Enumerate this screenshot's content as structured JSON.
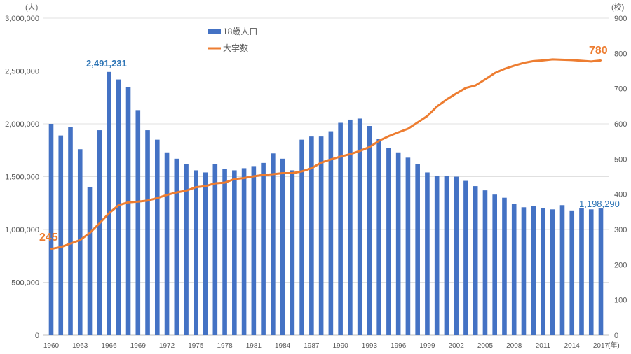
{
  "chart_data": {
    "type": "bar+line",
    "title": "",
    "left_axis": {
      "unit_label": "(人)",
      "range": [
        0,
        3000000
      ],
      "ticks": [
        "0",
        "500,000",
        "1,000,000",
        "1,500,000",
        "2,000,000",
        "2,500,000",
        "3,000,000"
      ]
    },
    "right_axis": {
      "unit_label": "(校)",
      "range": [
        0,
        900
      ],
      "ticks": [
        "0",
        "100",
        "200",
        "300",
        "400",
        "500",
        "600",
        "700",
        "800",
        "900"
      ]
    },
    "x_unit_label": "(年)",
    "x_tick_labels": [
      "1960",
      "1963",
      "1966",
      "1969",
      "1972",
      "1975",
      "1978",
      "1981",
      "1984",
      "1987",
      "1990",
      "1993",
      "1996",
      "1999",
      "2002",
      "2005",
      "2008",
      "2011",
      "2014",
      "2017"
    ],
    "grid": true,
    "legend_position": "top-left-center",
    "x": [
      1960,
      1961,
      1962,
      1963,
      1964,
      1965,
      1966,
      1967,
      1968,
      1969,
      1970,
      1971,
      1972,
      1973,
      1974,
      1975,
      1976,
      1977,
      1978,
      1979,
      1980,
      1981,
      1982,
      1983,
      1984,
      1985,
      1986,
      1987,
      1988,
      1989,
      1990,
      1991,
      1992,
      1993,
      1994,
      1995,
      1996,
      1997,
      1998,
      1999,
      2000,
      2001,
      2002,
      2003,
      2004,
      2005,
      2006,
      2007,
      2008,
      2009,
      2010,
      2011,
      2012,
      2013,
      2014,
      2015,
      2016,
      2017
    ],
    "series": [
      {
        "name": "18歳人口",
        "type": "bar",
        "axis": "left",
        "color": "#4472c4",
        "values": [
          2000000,
          1890000,
          1970000,
          1760000,
          1400000,
          1940000,
          2491231,
          2420000,
          2350000,
          2130000,
          1940000,
          1850000,
          1730000,
          1670000,
          1620000,
          1560000,
          1540000,
          1620000,
          1570000,
          1560000,
          1580000,
          1600000,
          1630000,
          1720000,
          1670000,
          1560000,
          1850000,
          1880000,
          1880000,
          1930000,
          2010000,
          2040000,
          2050000,
          1980000,
          1860000,
          1770000,
          1730000,
          1680000,
          1620000,
          1540000,
          1510000,
          1510000,
          1500000,
          1460000,
          1410000,
          1370000,
          1330000,
          1300000,
          1240000,
          1210000,
          1220000,
          1200000,
          1190000,
          1230000,
          1180000,
          1200000,
          1190000,
          1198290
        ]
      },
      {
        "name": "大学数",
        "type": "line",
        "axis": "right",
        "color": "#ed7d31",
        "values": [
          245,
          250,
          260,
          270,
          290,
          317,
          346,
          369,
          377,
          379,
          382,
          389,
          398,
          405,
          410,
          420,
          423,
          431,
          433,
          443,
          446,
          451,
          455,
          457,
          460,
          460,
          465,
          474,
          490,
          499,
          507,
          514,
          523,
          534,
          552,
          565,
          576,
          586,
          604,
          622,
          649,
          669,
          686,
          702,
          709,
          726,
          744,
          756,
          765,
          773,
          778,
          780,
          783,
          782,
          781,
          779,
          777,
          780
        ]
      }
    ],
    "annotations": {
      "peak_population": "2,491,231",
      "last_population": "1,198,290",
      "first_universities": "245",
      "last_universities": "780"
    }
  }
}
